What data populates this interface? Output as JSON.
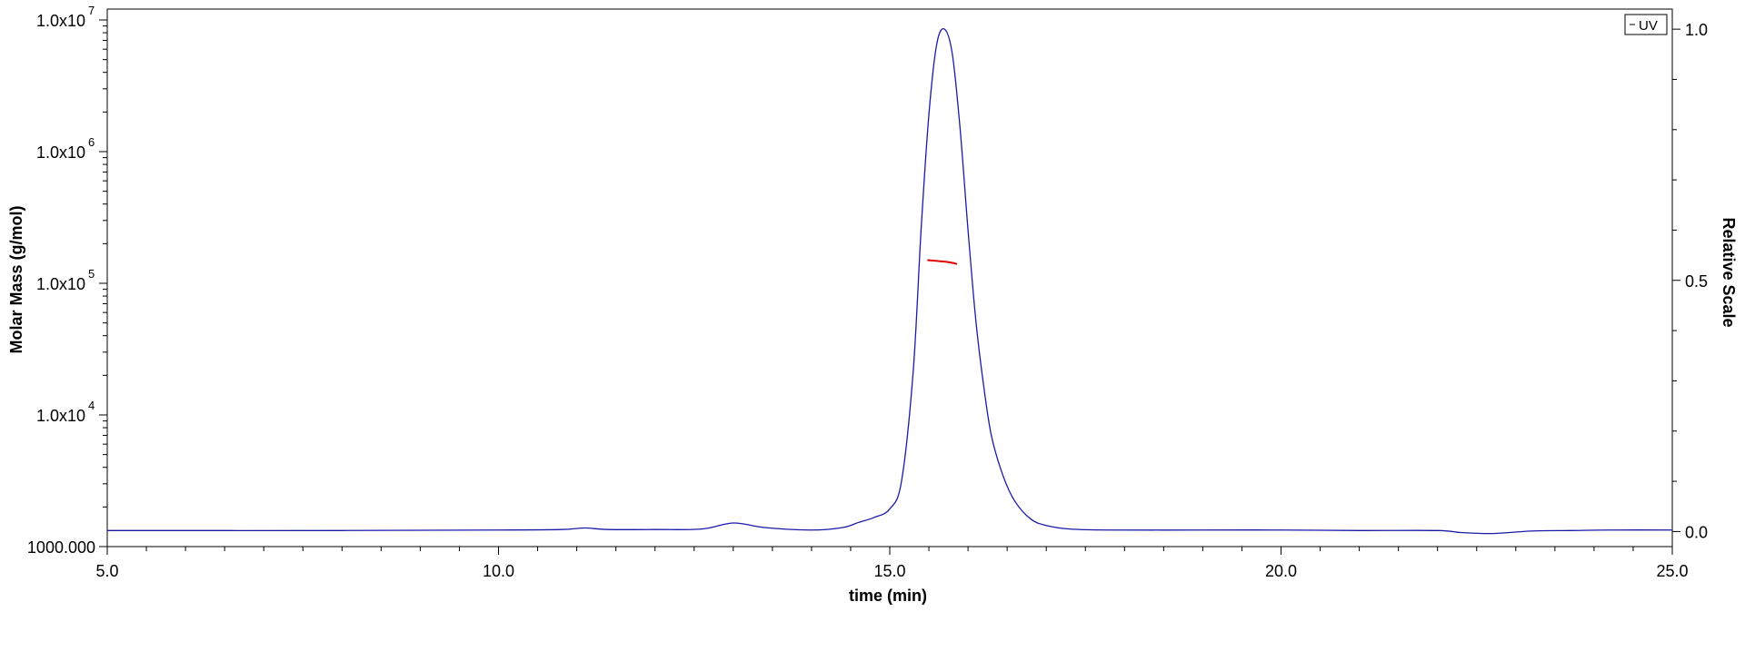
{
  "chart_data": {
    "type": "line",
    "xlabel": "time (min)",
    "ylabel_left": "Molar Mass (g/mol)",
    "ylabel_right": "Relative Scale",
    "xlim": [
      5.0,
      25.0
    ],
    "x_ticks": [
      5.0,
      10.0,
      15.0,
      20.0,
      25.0
    ],
    "x_tick_labels": [
      "5.0",
      "10.0",
      "15.0",
      "20.0",
      "25.0"
    ],
    "y_left_scale": "log",
    "y_left_lim": [
      1000,
      10000000
    ],
    "y_left_ticks": [
      {
        "value": 1000,
        "label": "1000.000",
        "base": "",
        "exp": ""
      },
      {
        "value": 10000,
        "label": "",
        "base": "1.0x10",
        "exp": "4"
      },
      {
        "value": 100000,
        "label": "",
        "base": "1.0x10",
        "exp": "5"
      },
      {
        "value": 1000000,
        "label": "",
        "base": "1.0x10",
        "exp": "6"
      },
      {
        "value": 10000000,
        "label": "",
        "base": "1.0x10",
        "exp": "7"
      }
    ],
    "y_right_lim": [
      -0.03,
      1.04
    ],
    "y_right_ticks": [
      0.0,
      0.5,
      1.0
    ],
    "y_right_tick_labels": [
      "0.0",
      "0.5",
      "1.0"
    ],
    "legend": {
      "entries": [
        "UV"
      ],
      "placement": "top-right"
    },
    "grid": false,
    "series": [
      {
        "name": "UV",
        "axis": "right",
        "color": "#1a1aa8",
        "x": [
          5.0,
          8.0,
          10.0,
          10.8,
          11.1,
          11.4,
          12.0,
          12.6,
          13.0,
          13.4,
          14.0,
          14.4,
          14.6,
          14.8,
          15.0,
          15.15,
          15.3,
          15.4,
          15.5,
          15.6,
          15.7,
          15.8,
          15.9,
          16.0,
          16.1,
          16.2,
          16.3,
          16.45,
          16.6,
          16.8,
          17.0,
          17.3,
          17.8,
          19.0,
          20.0,
          21.0,
          22.0,
          22.3,
          22.7,
          23.2,
          23.7,
          24.2,
          25.0
        ],
        "y": [
          0.002,
          0.002,
          0.003,
          0.004,
          0.007,
          0.004,
          0.004,
          0.005,
          0.017,
          0.008,
          0.003,
          0.008,
          0.018,
          0.028,
          0.045,
          0.1,
          0.32,
          0.6,
          0.83,
          0.97,
          1.0,
          0.95,
          0.8,
          0.6,
          0.42,
          0.29,
          0.19,
          0.11,
          0.06,
          0.025,
          0.012,
          0.005,
          0.003,
          0.003,
          0.003,
          0.002,
          0.002,
          -0.002,
          -0.004,
          0.001,
          0.002,
          0.003,
          0.003
        ]
      },
      {
        "name": "Molar Mass",
        "axis": "left",
        "color": "#dd0000",
        "x": [
          15.48,
          15.6,
          15.7,
          15.8,
          15.86
        ],
        "y": [
          150000,
          148000,
          146000,
          143000,
          140000
        ]
      }
    ]
  }
}
